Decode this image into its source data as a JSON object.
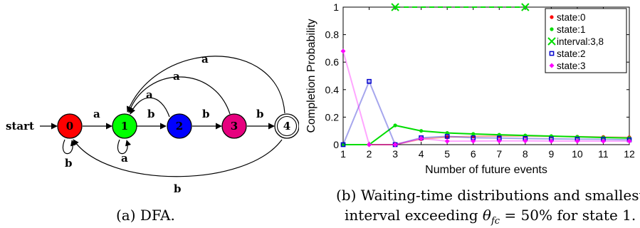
{
  "dfa": {
    "start_label": "start",
    "states": [
      {
        "id": "0",
        "fill": "#ff0000",
        "accepting": false
      },
      {
        "id": "1",
        "fill": "#00ff00",
        "accepting": false
      },
      {
        "id": "2",
        "fill": "#0000ff",
        "accepting": false
      },
      {
        "id": "3",
        "fill": "#e6007e",
        "accepting": false
      },
      {
        "id": "4",
        "fill": "#ffffff",
        "accepting": true
      }
    ],
    "edge_labels": {
      "e01": "a",
      "e12": "b",
      "e23": "b",
      "e34": "b",
      "self0": "b",
      "self1": "a",
      "e2to1": "a",
      "e3to1": "a",
      "e4to1": "a",
      "e4to0": "b"
    }
  },
  "captions": {
    "a": "(a) DFA.",
    "b_line1": "(b) Waiting-time distributions and smallest",
    "b_line2_prefix": "interval exceeding ",
    "b_theta": "θ",
    "b_sub": "fc",
    "b_line2_suffix": " = 50% for state 1."
  },
  "chart_data": {
    "type": "line",
    "xlabel": "Number of future events",
    "ylabel": "Completion Probability",
    "x": [
      1,
      2,
      3,
      4,
      5,
      6,
      7,
      8,
      9,
      10,
      11,
      12
    ],
    "xlim": [
      1,
      12
    ],
    "ylim": [
      0,
      1
    ],
    "xticks": [
      "1",
      "2",
      "3",
      "4",
      "5",
      "6",
      "7",
      "8",
      "9",
      "10",
      "11",
      "12"
    ],
    "yticks": [
      "0",
      "0.2",
      "0.4",
      "0.6",
      "0.8",
      "1"
    ],
    "legend_position": "top-right",
    "series": [
      {
        "name": "state:0",
        "color": "#ff0000",
        "marker": "dot",
        "values": [
          0,
          0,
          0,
          0.04,
          0.055,
          0.06,
          0.062,
          0.062,
          0.06,
          0.058,
          0.056,
          0.053
        ]
      },
      {
        "name": "state:1",
        "color": "#00dd00",
        "marker": "dot",
        "values": [
          0,
          0,
          0.14,
          0.1,
          0.085,
          0.078,
          0.072,
          0.067,
          0.062,
          0.057,
          0.052,
          0.048
        ]
      },
      {
        "name": "interval:3,8",
        "color": "#00dd00",
        "marker": "x",
        "dashed": true,
        "x": [
          3,
          8
        ],
        "values": [
          1,
          1
        ]
      },
      {
        "name": "state:2",
        "color": "#0000cc",
        "marker": "square",
        "values": [
          0,
          0.46,
          0,
          0.05,
          0.06,
          0.05,
          0.048,
          0.045,
          0.042,
          0.04,
          0.038,
          0.035
        ]
      },
      {
        "name": "state:3",
        "color": "#ff00ff",
        "marker": "diamond",
        "values": [
          0.68,
          0,
          0,
          0.045,
          0.025,
          0.026,
          0.027,
          0.027,
          0.026,
          0.026,
          0.025,
          0.025
        ]
      }
    ]
  }
}
